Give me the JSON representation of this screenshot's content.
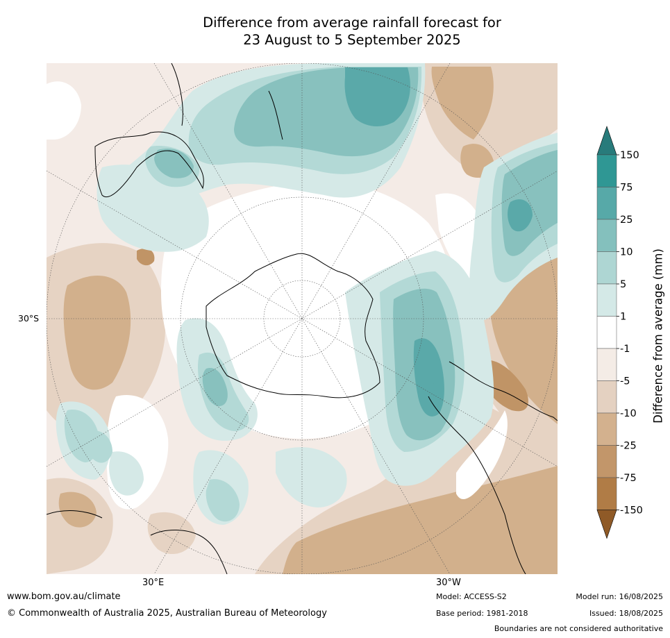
{
  "title": {
    "line1": "Difference from average rainfall forecast for",
    "line2": "23 August to 5 September 2025"
  },
  "map": {
    "projection": "south-polar-stereographic",
    "latitude_label": "30°S",
    "longitude_labels": {
      "east": "30°E",
      "west": "30°W"
    },
    "colors": {
      "wet_150": "#2b7a7a",
      "wet_75": "#369a98",
      "wet_25": "#5aa9a9",
      "wet_10": "#88c1be",
      "wet_5": "#b3d9d6",
      "wet_1": "#d5e9e7",
      "neutral": "#ffffff",
      "dry_1": "#f4ebe6",
      "dry_5": "#e6d3c3",
      "dry_10": "#d2b08c",
      "dry_25": "#c09466",
      "dry_75": "#b07a44",
      "dry_150": "#8f5b25"
    }
  },
  "colorbar": {
    "title": "Difference from average (mm)",
    "extend": "both",
    "ticks": [
      "150",
      "75",
      "25",
      "10",
      "5",
      "1",
      "-1",
      "-5",
      "-10",
      "-25",
      "-75",
      "-150"
    ],
    "band_colors": [
      "#2f9794",
      "#57a9a8",
      "#84c0bd",
      "#aed6d3",
      "#d4e9e7",
      "#ffffff",
      "#f4ece6",
      "#e4d1c1",
      "#d3b18e",
      "#c2966a",
      "#b07c46"
    ],
    "top_arrow_color": "#287b7b",
    "bottom_arrow_color": "#8f5a27"
  },
  "footer": {
    "website": "www.bom.gov.au/climate",
    "copyright": "© Commonwealth of Australia 2025, Australian Bureau of Meteorology",
    "model": "Model: ACCESS-S2",
    "base_period": "Base period: 1981-2018",
    "model_run": "Model run: 16/08/2025",
    "issued": "Issued: 18/08/2025",
    "disclaimer": "Boundaries are not considered authoritative"
  }
}
